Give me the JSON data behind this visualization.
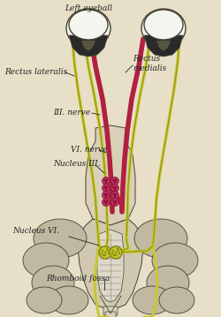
{
  "bg_color": "#e8dfc8",
  "labels": {
    "left_eyeball": "Left eyeball",
    "rectus_lateralis": "Rectus lateralis",
    "rectus_medialis": "Rectus\nmedialis",
    "III_nerve": "III. nerve",
    "VI_nerve": "VI. nerve",
    "nucleus_III": "Nucleus III.",
    "nucleus_VI": "Nucleus VI.",
    "rhomboid_fossa": "Rhomboid fossa"
  },
  "label_fontsize": 6.5,
  "figsize": [
    2.5,
    3.59
  ],
  "dpi": 100,
  "colors": {
    "yellow_nerve": "#c8c830",
    "yellow_dark": "#909010",
    "red_nerve": "#b02040",
    "red_nucleus": "#c03060",
    "red_nucleus_edge": "#801030",
    "nucleus_vi_fill": "#c8c830",
    "nucleus_vi_edge": "#808010",
    "eye_white": "#f5f5f0",
    "eye_dark": "#2a2a2a",
    "eye_mid": "#555540",
    "bone_light": "#d8d0b8",
    "bone_mid": "#c0b8a0",
    "bone_dark": "#a8a090",
    "outline": "#444433",
    "text_dark": "#222222",
    "bg": "#e8dfc8",
    "brainstem_fill": "#c8c0a8",
    "pons_fill": "#d0c8b0"
  }
}
